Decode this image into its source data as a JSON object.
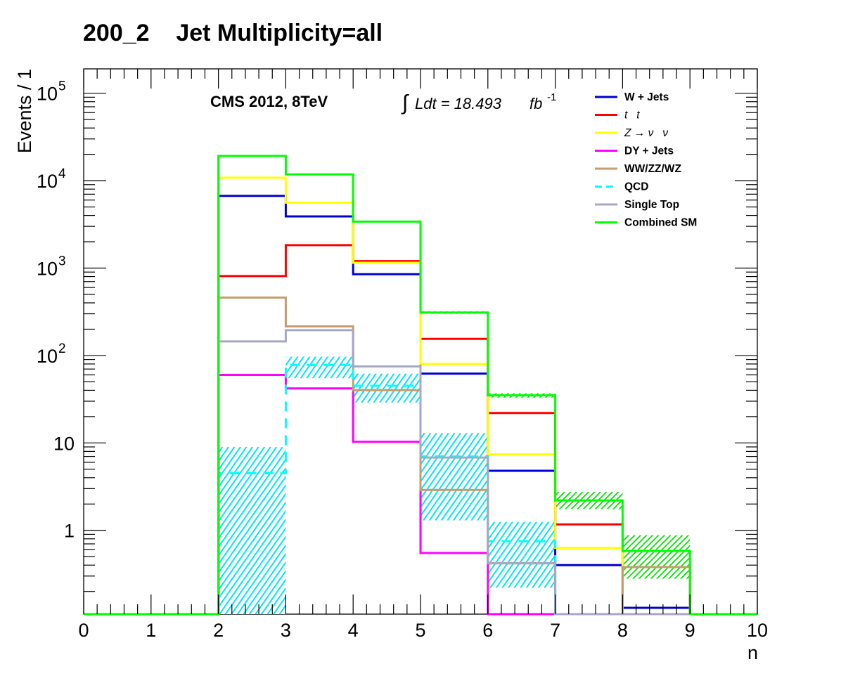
{
  "chart_data": {
    "type": "step-histogram",
    "title": "200_2    Jet Multiplicity=all",
    "xlabel": "n",
    "ylabel": "Events / 1",
    "xlim": [
      0,
      10
    ],
    "ylim": [
      0.11,
      190000
    ],
    "yscale": "log",
    "grid": false,
    "legend_position": "top-right",
    "x_ticks": [
      {
        "value": 0,
        "label": "0"
      },
      {
        "value": 1,
        "label": "1"
      },
      {
        "value": 2,
        "label": "2"
      },
      {
        "value": 3,
        "label": "3"
      },
      {
        "value": 4,
        "label": "4"
      },
      {
        "value": 5,
        "label": "5"
      },
      {
        "value": 6,
        "label": "6"
      },
      {
        "value": 7,
        "label": "7"
      },
      {
        "value": 8,
        "label": "8"
      },
      {
        "value": 9,
        "label": "9"
      },
      {
        "value": 10,
        "label": "10"
      }
    ],
    "y_ticks": [
      {
        "value": 1,
        "base": "1",
        "exp": ""
      },
      {
        "value": 10,
        "base": "10",
        "exp": ""
      },
      {
        "value": 100,
        "base": "10",
        "exp": "2"
      },
      {
        "value": 1000,
        "base": "10",
        "exp": "3"
      },
      {
        "value": 10000,
        "base": "10",
        "exp": "4"
      },
      {
        "value": 100000,
        "base": "10",
        "exp": "5"
      }
    ],
    "bin_edges": [
      0,
      1,
      2,
      3,
      4,
      5,
      6,
      7,
      8,
      9,
      10
    ],
    "annotations": {
      "experiment": "CMS 2012, 8TeV",
      "lumi_integral": "∫",
      "lumi_text": "Ldt = 18.493",
      "lumi_unit": "fb",
      "lumi_exp": "-1"
    },
    "series": [
      {
        "name": "W + Jets",
        "color": "#0000d6",
        "dash": false,
        "values": [
          0,
          0,
          6700,
          3900,
          850,
          62,
          4.8,
          0.4,
          0.13,
          0
        ]
      },
      {
        "name": "t   t",
        "label_style": "italic",
        "color": "#ff0000",
        "dash": false,
        "values": [
          0,
          0,
          810,
          1830,
          1200,
          155,
          22,
          1.17,
          0.38,
          0
        ]
      },
      {
        "name": "Z → ν   ν",
        "label_style": "italic",
        "color": "#ffff00",
        "dash": false,
        "values": [
          0,
          0,
          10800,
          5600,
          1150,
          80,
          7.4,
          0.63,
          0,
          0
        ]
      },
      {
        "name": "DY + Jets",
        "color": "#ff00ff",
        "dash": false,
        "values": [
          0,
          0,
          60,
          42,
          10.3,
          0.55,
          0,
          0,
          0,
          0
        ]
      },
      {
        "name": "WW/ZZ/WZ",
        "color": "#c69c6d",
        "dash": false,
        "values": [
          0,
          0,
          460,
          215,
          40,
          2.9,
          0.42,
          0,
          0.38,
          0
        ]
      },
      {
        "name": "QCD",
        "color": "#00ffff",
        "dash": true,
        "values": [
          0,
          0,
          4.5,
          78,
          45,
          7,
          0.75,
          0,
          0,
          0
        ],
        "band_low": [
          0,
          0,
          0.11,
          55,
          29,
          1.3,
          0.22,
          0,
          0,
          0
        ],
        "band_high": [
          0,
          0,
          9,
          97,
          62,
          13,
          1.25,
          0,
          0,
          0
        ]
      },
      {
        "name": "Single Top",
        "color": "#a7a7c6",
        "dash": false,
        "values": [
          0,
          0,
          145,
          195,
          75,
          6.8,
          0.42,
          0,
          0,
          0
        ]
      },
      {
        "name": "Combined SM",
        "color": "#00ff00",
        "dash": false,
        "values": [
          0,
          0,
          19200,
          11800,
          3400,
          310,
          35,
          2.2,
          0.58,
          0
        ],
        "band_low": [
          0,
          0,
          19000,
          11700,
          3360,
          300,
          33,
          1.75,
          0.28,
          0
        ],
        "band_high": [
          0,
          0,
          19400,
          11900,
          3440,
          320,
          37,
          2.75,
          0.88,
          0
        ]
      }
    ]
  }
}
